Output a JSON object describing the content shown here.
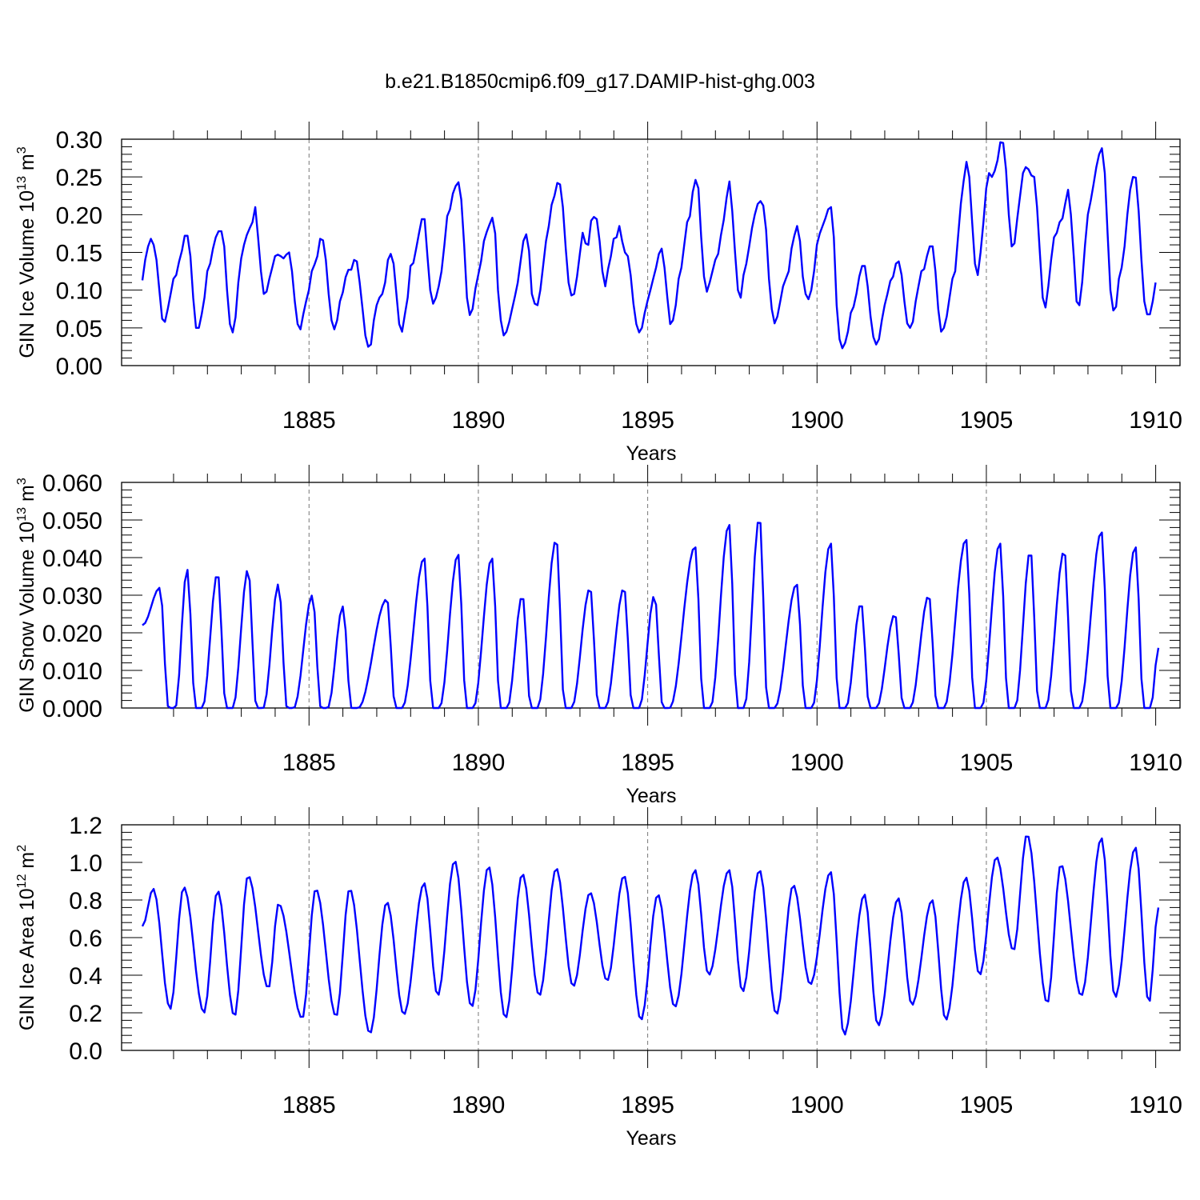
{
  "figure": {
    "title": "b.e21.B1850cmip6.f09_g17.DAMIP-hist-ghg.003"
  },
  "chart_data": [
    {
      "type": "line",
      "name": "gin-ice-volume",
      "title": "b.e21.B1850cmip6.f09_g17.DAMIP-hist-ghg.003",
      "xlabel": "Years",
      "ylabel": "GIN Ice Volume 10",
      "ylabel_exp": "13",
      "ylabel_unit": " m",
      "ylabel_unit_exp": "3",
      "xlim": [
        1880.08,
        1910.08
      ],
      "ylim": [
        0.0,
        0.3
      ],
      "xticks": [
        1885,
        1890,
        1895,
        1900,
        1905,
        1910
      ],
      "xticklabels": [
        "1885",
        "1890",
        "1895",
        "1900",
        "1905",
        "1910"
      ],
      "yticks": [
        0.0,
        0.05,
        0.1,
        0.15,
        0.2,
        0.25,
        0.3
      ],
      "yticklabels": [
        "0.00",
        "0.05",
        "0.10",
        "0.15",
        "0.20",
        "0.25",
        "0.30"
      ],
      "grid_x": true,
      "color": "#0000ff",
      "series": [
        {
          "name": "Ice Volume",
          "start": 1880.08,
          "step": 0.0833333,
          "values": [
            0.113,
            0.14,
            0.158,
            0.168,
            0.16,
            0.14,
            0.1,
            0.062,
            0.058,
            0.075,
            0.095,
            0.115,
            0.12,
            0.138,
            0.152,
            0.172,
            0.172,
            0.145,
            0.09,
            0.05,
            0.05,
            0.068,
            0.09,
            0.125,
            0.135,
            0.155,
            0.17,
            0.178,
            0.178,
            0.158,
            0.1,
            0.055,
            0.044,
            0.064,
            0.11,
            0.142,
            0.16,
            0.173,
            0.182,
            0.19,
            0.21,
            0.17,
            0.125,
            0.095,
            0.098,
            0.115,
            0.13,
            0.145,
            0.147,
            0.145,
            0.142,
            0.147,
            0.15,
            0.125,
            0.085,
            0.055,
            0.048,
            0.068,
            0.085,
            0.1,
            0.125,
            0.134,
            0.145,
            0.168,
            0.166,
            0.14,
            0.095,
            0.06,
            0.048,
            0.06,
            0.085,
            0.097,
            0.117,
            0.127,
            0.127,
            0.14,
            0.138,
            0.11,
            0.075,
            0.04,
            0.025,
            0.028,
            0.06,
            0.08,
            0.09,
            0.095,
            0.11,
            0.14,
            0.148,
            0.135,
            0.095,
            0.055,
            0.045,
            0.068,
            0.09,
            0.132,
            0.136,
            0.155,
            0.175,
            0.194,
            0.194,
            0.145,
            0.1,
            0.082,
            0.09,
            0.105,
            0.125,
            0.16,
            0.198,
            0.207,
            0.228,
            0.238,
            0.243,
            0.22,
            0.16,
            0.09,
            0.067,
            0.075,
            0.102,
            0.12,
            0.138,
            0.165,
            0.177,
            0.187,
            0.196,
            0.175,
            0.1,
            0.06,
            0.04,
            0.045,
            0.058,
            0.075,
            0.092,
            0.11,
            0.138,
            0.165,
            0.174,
            0.152,
            0.095,
            0.082,
            0.08,
            0.1,
            0.132,
            0.165,
            0.185,
            0.213,
            0.225,
            0.242,
            0.24,
            0.21,
            0.155,
            0.11,
            0.093,
            0.095,
            0.118,
            0.148,
            0.176,
            0.162,
            0.16,
            0.192,
            0.197,
            0.194,
            0.165,
            0.125,
            0.105,
            0.128,
            0.145,
            0.168,
            0.17,
            0.185,
            0.165,
            0.15,
            0.145,
            0.12,
            0.082,
            0.055,
            0.044,
            0.05,
            0.07,
            0.086,
            0.1,
            0.115,
            0.13,
            0.148,
            0.155,
            0.13,
            0.09,
            0.055,
            0.06,
            0.08,
            0.115,
            0.13,
            0.16,
            0.19,
            0.198,
            0.23,
            0.246,
            0.235,
            0.17,
            0.118,
            0.098,
            0.11,
            0.125,
            0.14,
            0.148,
            0.173,
            0.193,
            0.222,
            0.244,
            0.205,
            0.15,
            0.1,
            0.09,
            0.12,
            0.135,
            0.158,
            0.182,
            0.2,
            0.214,
            0.218,
            0.212,
            0.18,
            0.115,
            0.075,
            0.056,
            0.065,
            0.085,
            0.105,
            0.115,
            0.125,
            0.155,
            0.172,
            0.185,
            0.165,
            0.118,
            0.095,
            0.088,
            0.1,
            0.125,
            0.16,
            0.175,
            0.185,
            0.195,
            0.207,
            0.21,
            0.17,
            0.08,
            0.035,
            0.023,
            0.03,
            0.045,
            0.07,
            0.078,
            0.095,
            0.118,
            0.132,
            0.132,
            0.105,
            0.065,
            0.038,
            0.028,
            0.035,
            0.06,
            0.08,
            0.095,
            0.112,
            0.118,
            0.135,
            0.138,
            0.12,
            0.085,
            0.056,
            0.05,
            0.058,
            0.085,
            0.105,
            0.125,
            0.128,
            0.145,
            0.158,
            0.158,
            0.125,
            0.075,
            0.045,
            0.05,
            0.065,
            0.09,
            0.115,
            0.125,
            0.17,
            0.215,
            0.245,
            0.27,
            0.25,
            0.19,
            0.135,
            0.12,
            0.15,
            0.19,
            0.235,
            0.255,
            0.25,
            0.258,
            0.272,
            0.296,
            0.295,
            0.26,
            0.2,
            0.158,
            0.162,
            0.195,
            0.225,
            0.255,
            0.263,
            0.26,
            0.252,
            0.25,
            0.21,
            0.15,
            0.09,
            0.077,
            0.105,
            0.14,
            0.17,
            0.176,
            0.19,
            0.195,
            0.215,
            0.233,
            0.2,
            0.145,
            0.085,
            0.08,
            0.11,
            0.16,
            0.2,
            0.218,
            0.24,
            0.263,
            0.28,
            0.288,
            0.255,
            0.175,
            0.1,
            0.073,
            0.078,
            0.115,
            0.13,
            0.158,
            0.2,
            0.233,
            0.25,
            0.249,
            0.205,
            0.14,
            0.085,
            0.068,
            0.068,
            0.085,
            0.11
          ]
        }
      ]
    },
    {
      "type": "line",
      "name": "gin-snow-volume",
      "xlabel": "Years",
      "ylabel": "GIN Snow Volume 10",
      "ylabel_exp": "13",
      "ylabel_unit": " m",
      "ylabel_unit_exp": "3",
      "xlim": [
        1880.08,
        1910.08
      ],
      "ylim": [
        0.0,
        0.06
      ],
      "xticks": [
        1885,
        1890,
        1895,
        1900,
        1905,
        1910
      ],
      "xticklabels": [
        "1885",
        "1890",
        "1895",
        "1900",
        "1905",
        "1910"
      ],
      "yticks": [
        0.0,
        0.01,
        0.02,
        0.03,
        0.04,
        0.05,
        0.06
      ],
      "yticklabels": [
        "0.000",
        "0.010",
        "0.020",
        "0.030",
        "0.040",
        "0.050",
        "0.060"
      ],
      "grid_x": true,
      "color": "#0000ff",
      "series": [
        {
          "name": "Snow Volume",
          "peak_times": [
            1880.6,
            1881.4,
            1882.3,
            1883.2,
            1884.1,
            1885.1,
            1886.0,
            1887.3,
            1888.4,
            1889.4,
            1890.4,
            1891.3,
            1892.3,
            1893.3,
            1894.3,
            1895.2,
            1896.4,
            1897.4,
            1898.3,
            1899.4,
            1900.4,
            1901.3,
            1902.3,
            1903.3,
            1904.4,
            1905.4,
            1906.3,
            1907.3,
            1908.4,
            1909.4
          ],
          "peak_values": [
            0.032,
            0.037,
            0.036,
            0.037,
            0.033,
            0.03,
            0.027,
            0.029,
            0.04,
            0.041,
            0.04,
            0.03,
            0.045,
            0.032,
            0.032,
            0.03,
            0.043,
            0.049,
            0.051,
            0.033,
            0.044,
            0.028,
            0.025,
            0.03,
            0.045,
            0.044,
            0.042,
            0.042,
            0.047,
            0.043
          ],
          "minimum": 0.0,
          "start_value": 0.022,
          "end_value": 0.016
        }
      ]
    },
    {
      "type": "line",
      "name": "gin-ice-area",
      "xlabel": "Years",
      "ylabel": "GIN Ice Area 10",
      "ylabel_exp": "12",
      "ylabel_unit": " m",
      "ylabel_unit_exp": "2",
      "xlim": [
        1880.08,
        1910.08
      ],
      "ylim": [
        0.0,
        1.2
      ],
      "xticks": [
        1885,
        1890,
        1895,
        1900,
        1905,
        1910
      ],
      "xticklabels": [
        "1885",
        "1890",
        "1895",
        "1900",
        "1905",
        "1910"
      ],
      "yticks": [
        0.0,
        0.2,
        0.4,
        0.6,
        0.8,
        1.0,
        1.2
      ],
      "yticklabels": [
        "0.0",
        "0.2",
        "0.4",
        "0.6",
        "0.8",
        "1.0",
        "1.2"
      ],
      "grid_x": true,
      "color": "#0000ff",
      "series": [
        {
          "name": "Ice Area",
          "peak_times": [
            1880.4,
            1881.3,
            1882.3,
            1883.2,
            1884.1,
            1885.2,
            1886.2,
            1887.3,
            1888.4,
            1889.3,
            1890.3,
            1891.3,
            1892.3,
            1893.3,
            1894.3,
            1895.3,
            1896.4,
            1897.4,
            1898.3,
            1899.3,
            1900.4,
            1901.4,
            1902.4,
            1903.4,
            1904.4,
            1905.3,
            1906.2,
            1907.2,
            1908.4,
            1909.4
          ],
          "peak_values": [
            0.86,
            0.87,
            0.85,
            0.93,
            0.78,
            0.86,
            0.86,
            0.79,
            0.89,
            1.01,
            0.98,
            0.94,
            0.97,
            0.84,
            0.93,
            0.83,
            0.96,
            0.96,
            0.96,
            0.88,
            0.95,
            0.83,
            0.81,
            0.8,
            0.92,
            1.03,
            1.15,
            0.99,
            1.13,
            1.08
          ],
          "trough_times": [
            1880.9,
            1881.9,
            1882.8,
            1883.8,
            1884.8,
            1885.8,
            1886.8,
            1887.8,
            1888.8,
            1889.8,
            1890.8,
            1891.8,
            1892.8,
            1893.8,
            1894.8,
            1895.8,
            1896.8,
            1897.8,
            1898.8,
            1899.8,
            1900.8,
            1901.8,
            1902.8,
            1903.8,
            1904.8,
            1905.8,
            1906.8,
            1907.8,
            1908.8,
            1909.8
          ],
          "trough_values": [
            0.22,
            0.2,
            0.18,
            0.33,
            0.17,
            0.18,
            0.09,
            0.19,
            0.29,
            0.23,
            0.17,
            0.29,
            0.34,
            0.37,
            0.16,
            0.23,
            0.4,
            0.31,
            0.19,
            0.35,
            0.08,
            0.13,
            0.24,
            0.16,
            0.4,
            0.53,
            0.25,
            0.29,
            0.28,
            0.25
          ],
          "start_value": 0.66,
          "end_value": 0.76
        }
      ]
    }
  ]
}
